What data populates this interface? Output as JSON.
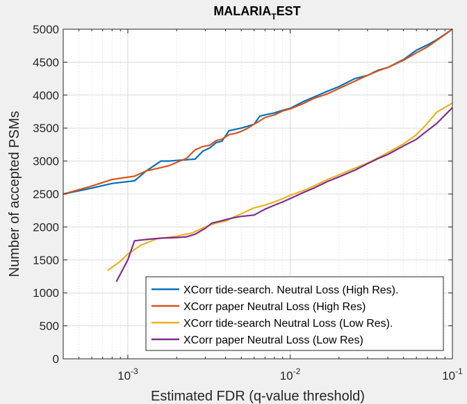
{
  "chart_data": {
    "type": "line",
    "title": "MALARIA",
    "title_subscript": "T",
    "title_suffix": "EST",
    "xlabel": "Estimated FDR (q-value threshold)",
    "ylabel": "Number of accepted PSMs",
    "xscale": "log",
    "xlim": [
      0.0004,
      0.1
    ],
    "ylim": [
      0,
      5000
    ],
    "grid": true,
    "legend_position": "bottom-right",
    "x_ticks": [
      {
        "value": 0.001,
        "base": "10",
        "exp": "-3"
      },
      {
        "value": 0.01,
        "base": "10",
        "exp": "-2"
      },
      {
        "value": 0.1,
        "base": "10",
        "exp": "-1"
      }
    ],
    "y_ticks": [
      0,
      500,
      1000,
      1500,
      2000,
      2500,
      3000,
      3500,
      4000,
      4500,
      5000
    ],
    "series": [
      {
        "name": "XCorr tide-search. Neutral Loss (High Res).",
        "color": "#0072BD",
        "x": [
          0.0004,
          0.0006,
          0.0008,
          0.0011,
          0.0013,
          0.0016,
          0.0018,
          0.002,
          0.0023,
          0.0026,
          0.0029,
          0.0032,
          0.0035,
          0.0038,
          0.0042,
          0.0046,
          0.005,
          0.0055,
          0.006,
          0.0065,
          0.007,
          0.008,
          0.009,
          0.01,
          0.012,
          0.014,
          0.017,
          0.02,
          0.025,
          0.03,
          0.035,
          0.04,
          0.05,
          0.06,
          0.07,
          0.08,
          0.1
        ],
        "y": [
          2500,
          2590,
          2660,
          2700,
          2850,
          3000,
          3000,
          3010,
          3020,
          3030,
          3150,
          3200,
          3280,
          3300,
          3460,
          3480,
          3500,
          3530,
          3560,
          3680,
          3700,
          3730,
          3770,
          3800,
          3900,
          3970,
          4060,
          4130,
          4250,
          4300,
          4380,
          4420,
          4540,
          4680,
          4760,
          4840,
          5000
        ]
      },
      {
        "name": "XCorr paper Neutral Loss (High Res)",
        "color": "#D95319",
        "x": [
          0.0004,
          0.0006,
          0.0008,
          0.0011,
          0.0013,
          0.0016,
          0.0018,
          0.002,
          0.0023,
          0.0026,
          0.0029,
          0.0032,
          0.0035,
          0.0038,
          0.0042,
          0.0046,
          0.005,
          0.0055,
          0.006,
          0.0065,
          0.007,
          0.008,
          0.009,
          0.01,
          0.012,
          0.014,
          0.017,
          0.02,
          0.025,
          0.03,
          0.035,
          0.04,
          0.05,
          0.06,
          0.07,
          0.08,
          0.1
        ],
        "y": [
          2500,
          2620,
          2720,
          2770,
          2850,
          2900,
          2930,
          2980,
          3040,
          3170,
          3220,
          3240,
          3310,
          3330,
          3400,
          3420,
          3450,
          3500,
          3560,
          3610,
          3660,
          3700,
          3760,
          3790,
          3870,
          3950,
          4020,
          4100,
          4210,
          4300,
          4370,
          4420,
          4530,
          4640,
          4730,
          4830,
          5000
        ]
      },
      {
        "name": "XCorr tide-search Neutral Loss (Low Res).",
        "color": "#EDB120",
        "x": [
          0.00075,
          0.0009,
          0.001,
          0.0012,
          0.0015,
          0.002,
          0.0025,
          0.003,
          0.0035,
          0.004,
          0.0045,
          0.005,
          0.006,
          0.007,
          0.008,
          0.009,
          0.01,
          0.012,
          0.014,
          0.017,
          0.02,
          0.025,
          0.03,
          0.035,
          0.04,
          0.05,
          0.06,
          0.07,
          0.08,
          0.1
        ],
        "y": [
          1340,
          1480,
          1590,
          1720,
          1820,
          1860,
          1910,
          2000,
          2060,
          2090,
          2150,
          2200,
          2290,
          2330,
          2380,
          2430,
          2480,
          2550,
          2620,
          2720,
          2790,
          2890,
          2970,
          3050,
          3130,
          3260,
          3400,
          3570,
          3740,
          3880
        ]
      },
      {
        "name": "XCorr paper Neutral Loss (Low Res)",
        "color": "#7E2F8E",
        "x": [
          0.00085,
          0.001,
          0.0011,
          0.0013,
          0.0016,
          0.002,
          0.0023,
          0.0026,
          0.003,
          0.0033,
          0.0036,
          0.004,
          0.0045,
          0.005,
          0.006,
          0.007,
          0.008,
          0.009,
          0.01,
          0.012,
          0.014,
          0.017,
          0.02,
          0.025,
          0.03,
          0.035,
          0.04,
          0.05,
          0.06,
          0.07,
          0.08,
          0.1
        ],
        "y": [
          1170,
          1500,
          1790,
          1810,
          1830,
          1840,
          1850,
          1890,
          1980,
          2060,
          2080,
          2110,
          2140,
          2160,
          2180,
          2270,
          2330,
          2380,
          2430,
          2520,
          2590,
          2690,
          2760,
          2860,
          2960,
          3040,
          3100,
          3230,
          3330,
          3460,
          3570,
          3810
        ]
      }
    ]
  }
}
